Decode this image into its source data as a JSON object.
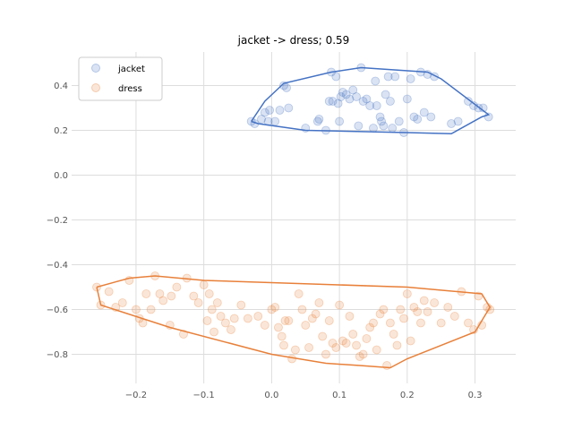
{
  "chart_data": {
    "type": "scatter",
    "title": "jacket -> dress; 0.59",
    "xlabel": "",
    "ylabel": "",
    "xlim": [
      -0.295,
      0.36
    ],
    "ylim": [
      -0.93,
      0.55
    ],
    "xticks": [
      -0.2,
      -0.1,
      0.0,
      0.1,
      0.2,
      0.3
    ],
    "xtick_labels": [
      "−0.2",
      "−0.1",
      "0.0",
      "0.1",
      "0.2",
      "0.3"
    ],
    "yticks": [
      0.4,
      0.2,
      0.0,
      -0.2,
      -0.4,
      -0.6,
      -0.8
    ],
    "ytick_labels": [
      "0.4",
      "0.2",
      "0.0",
      "−0.2",
      "−0.4",
      "−0.6",
      "−0.8"
    ],
    "grid": true,
    "legend_position": "top-left",
    "series": [
      {
        "name": "jacket",
        "color": "#4472c4",
        "points": [
          [
            -0.03,
            0.24
          ],
          [
            -0.025,
            0.23
          ],
          [
            -0.015,
            0.25
          ],
          [
            -0.01,
            0.28
          ],
          [
            -0.005,
            0.24
          ],
          [
            -0.003,
            0.29
          ],
          [
            0.005,
            0.24
          ],
          [
            0.012,
            0.29
          ],
          [
            0.018,
            0.4
          ],
          [
            0.022,
            0.39
          ],
          [
            0.025,
            0.3
          ],
          [
            0.05,
            0.21
          ],
          [
            0.068,
            0.24
          ],
          [
            0.07,
            0.25
          ],
          [
            0.08,
            0.2
          ],
          [
            0.085,
            0.33
          ],
          [
            0.088,
            0.46
          ],
          [
            0.09,
            0.33
          ],
          [
            0.095,
            0.44
          ],
          [
            0.098,
            0.32
          ],
          [
            0.1,
            0.24
          ],
          [
            0.102,
            0.35
          ],
          [
            0.105,
            0.37
          ],
          [
            0.11,
            0.36
          ],
          [
            0.115,
            0.34
          ],
          [
            0.12,
            0.38
          ],
          [
            0.125,
            0.35
          ],
          [
            0.128,
            0.22
          ],
          [
            0.132,
            0.48
          ],
          [
            0.135,
            0.33
          ],
          [
            0.14,
            0.34
          ],
          [
            0.145,
            0.31
          ],
          [
            0.15,
            0.21
          ],
          [
            0.153,
            0.42
          ],
          [
            0.155,
            0.31
          ],
          [
            0.16,
            0.26
          ],
          [
            0.162,
            0.24
          ],
          [
            0.165,
            0.22
          ],
          [
            0.168,
            0.36
          ],
          [
            0.172,
            0.44
          ],
          [
            0.175,
            0.33
          ],
          [
            0.178,
            0.21
          ],
          [
            0.182,
            0.44
          ],
          [
            0.188,
            0.24
          ],
          [
            0.195,
            0.19
          ],
          [
            0.2,
            0.34
          ],
          [
            0.205,
            0.43
          ],
          [
            0.21,
            0.26
          ],
          [
            0.215,
            0.25
          ],
          [
            0.22,
            0.46
          ],
          [
            0.225,
            0.28
          ],
          [
            0.23,
            0.45
          ],
          [
            0.235,
            0.26
          ],
          [
            0.24,
            0.44
          ],
          [
            0.265,
            0.23
          ],
          [
            0.275,
            0.24
          ],
          [
            0.29,
            0.33
          ],
          [
            0.298,
            0.31
          ],
          [
            0.305,
            0.3
          ],
          [
            0.312,
            0.3
          ],
          [
            0.32,
            0.26
          ]
        ],
        "hull": [
          [
            -0.03,
            0.24
          ],
          [
            -0.01,
            0.33
          ],
          [
            0.018,
            0.41
          ],
          [
            0.088,
            0.46
          ],
          [
            0.132,
            0.48
          ],
          [
            0.23,
            0.46
          ],
          [
            0.25,
            0.43
          ],
          [
            0.32,
            0.27
          ],
          [
            0.31,
            0.26
          ],
          [
            0.265,
            0.185
          ],
          [
            0.2,
            0.19
          ],
          [
            0.05,
            0.2
          ],
          [
            -0.02,
            0.23
          ],
          [
            -0.03,
            0.24
          ]
        ]
      },
      {
        "name": "dress",
        "color": "#e8803a",
        "points": [
          [
            -0.258,
            -0.5
          ],
          [
            -0.252,
            -0.58
          ],
          [
            -0.24,
            -0.52
          ],
          [
            -0.23,
            -0.59
          ],
          [
            -0.22,
            -0.57
          ],
          [
            -0.21,
            -0.47
          ],
          [
            -0.2,
            -0.6
          ],
          [
            -0.195,
            -0.64
          ],
          [
            -0.19,
            -0.66
          ],
          [
            -0.185,
            -0.53
          ],
          [
            -0.178,
            -0.6
          ],
          [
            -0.172,
            -0.45
          ],
          [
            -0.165,
            -0.53
          ],
          [
            -0.16,
            -0.56
          ],
          [
            -0.15,
            -0.67
          ],
          [
            -0.148,
            -0.54
          ],
          [
            -0.14,
            -0.5
          ],
          [
            -0.13,
            -0.71
          ],
          [
            -0.125,
            -0.46
          ],
          [
            -0.115,
            -0.54
          ],
          [
            -0.108,
            -0.57
          ],
          [
            -0.1,
            -0.49
          ],
          [
            -0.095,
            -0.65
          ],
          [
            -0.092,
            -0.53
          ],
          [
            -0.088,
            -0.6
          ],
          [
            -0.085,
            -0.7
          ],
          [
            -0.08,
            -0.57
          ],
          [
            -0.075,
            -0.63
          ],
          [
            -0.068,
            -0.66
          ],
          [
            -0.06,
            -0.69
          ],
          [
            -0.055,
            -0.64
          ],
          [
            -0.045,
            -0.58
          ],
          [
            -0.035,
            -0.64
          ],
          [
            -0.02,
            -0.63
          ],
          [
            -0.01,
            -0.67
          ],
          [
            0.0,
            -0.6
          ],
          [
            0.005,
            -0.59
          ],
          [
            0.01,
            -0.68
          ],
          [
            0.015,
            -0.72
          ],
          [
            0.018,
            -0.76
          ],
          [
            0.02,
            -0.65
          ],
          [
            0.025,
            -0.65
          ],
          [
            0.03,
            -0.82
          ],
          [
            0.035,
            -0.78
          ],
          [
            0.04,
            -0.53
          ],
          [
            0.045,
            -0.6
          ],
          [
            0.05,
            -0.67
          ],
          [
            0.055,
            -0.77
          ],
          [
            0.06,
            -0.64
          ],
          [
            0.065,
            -0.62
          ],
          [
            0.07,
            -0.57
          ],
          [
            0.075,
            -0.72
          ],
          [
            0.08,
            -0.8
          ],
          [
            0.085,
            -0.65
          ],
          [
            0.09,
            -0.75
          ],
          [
            0.095,
            -0.77
          ],
          [
            0.1,
            -0.58
          ],
          [
            0.105,
            -0.74
          ],
          [
            0.11,
            -0.75
          ],
          [
            0.115,
            -0.63
          ],
          [
            0.12,
            -0.71
          ],
          [
            0.125,
            -0.76
          ],
          [
            0.13,
            -0.81
          ],
          [
            0.135,
            -0.8
          ],
          [
            0.14,
            -0.73
          ],
          [
            0.145,
            -0.68
          ],
          [
            0.15,
            -0.66
          ],
          [
            0.155,
            -0.78
          ],
          [
            0.16,
            -0.62
          ],
          [
            0.165,
            -0.6
          ],
          [
            0.17,
            -0.85
          ],
          [
            0.175,
            -0.66
          ],
          [
            0.18,
            -0.71
          ],
          [
            0.185,
            -0.76
          ],
          [
            0.19,
            -0.6
          ],
          [
            0.195,
            -0.64
          ],
          [
            0.2,
            -0.53
          ],
          [
            0.205,
            -0.74
          ],
          [
            0.21,
            -0.59
          ],
          [
            0.215,
            -0.61
          ],
          [
            0.22,
            -0.66
          ],
          [
            0.225,
            -0.56
          ],
          [
            0.23,
            -0.61
          ],
          [
            0.24,
            -0.57
          ],
          [
            0.25,
            -0.66
          ],
          [
            0.26,
            -0.59
          ],
          [
            0.27,
            -0.63
          ],
          [
            0.28,
            -0.52
          ],
          [
            0.29,
            -0.66
          ],
          [
            0.298,
            -0.69
          ],
          [
            0.305,
            -0.54
          ],
          [
            0.31,
            -0.67
          ],
          [
            0.318,
            -0.59
          ],
          [
            0.322,
            -0.6
          ]
        ],
        "hull": [
          [
            -0.258,
            -0.5
          ],
          [
            -0.21,
            -0.46
          ],
          [
            -0.172,
            -0.45
          ],
          [
            -0.1,
            -0.47
          ],
          [
            0.2,
            -0.5
          ],
          [
            0.31,
            -0.53
          ],
          [
            0.322,
            -0.59
          ],
          [
            0.3,
            -0.7
          ],
          [
            0.2,
            -0.82
          ],
          [
            0.175,
            -0.86
          ],
          [
            0.13,
            -0.85
          ],
          [
            0.08,
            -0.84
          ],
          [
            0.0,
            -0.8
          ],
          [
            -0.15,
            -0.68
          ],
          [
            -0.252,
            -0.58
          ],
          [
            -0.258,
            -0.5
          ]
        ]
      }
    ]
  }
}
